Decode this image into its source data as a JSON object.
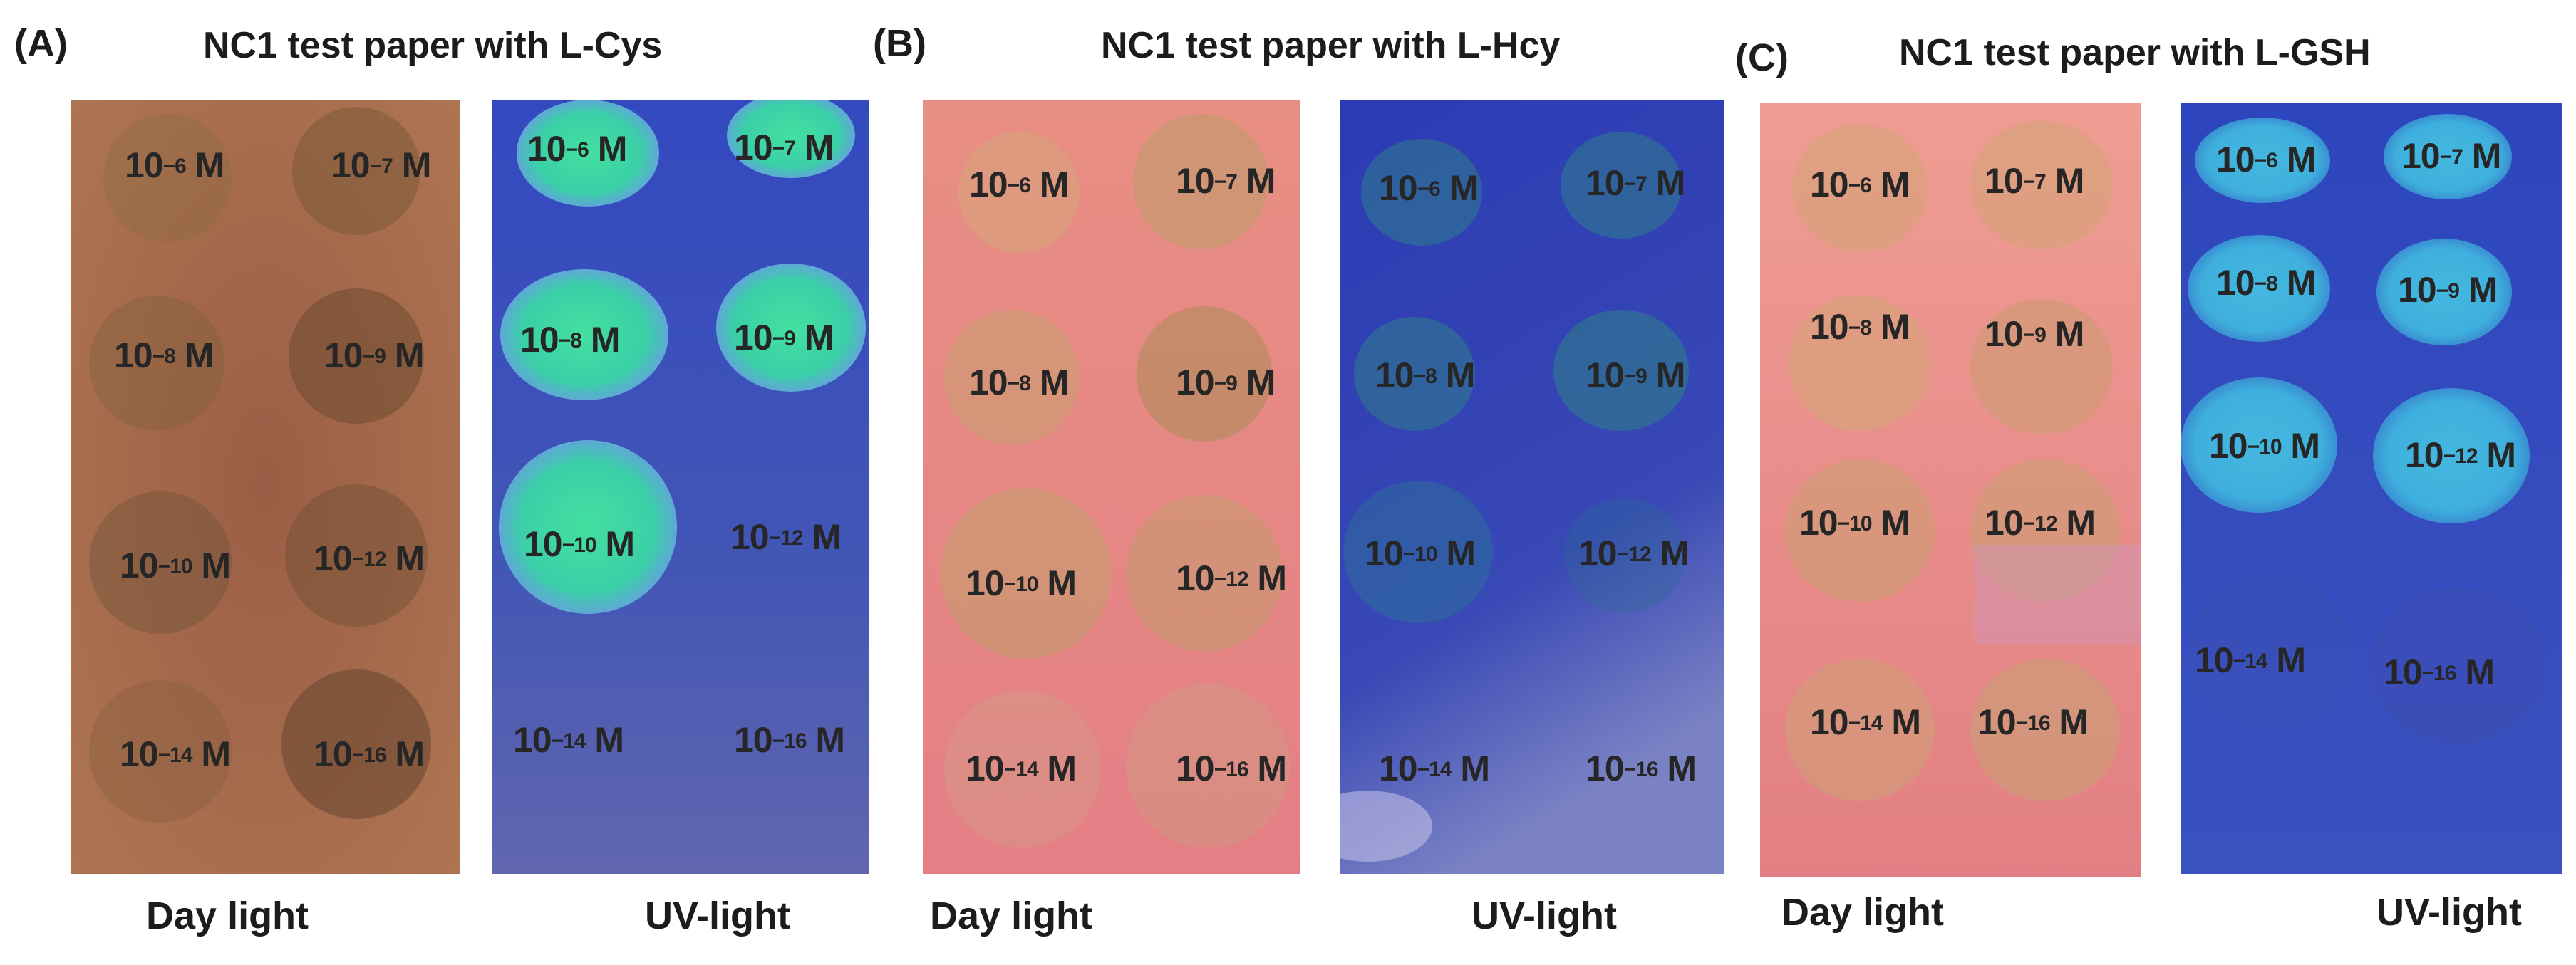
{
  "colors": {
    "daylight_a": "#a4684a",
    "daylight_pink": "#e8847f",
    "uv_blue": "#3d4fb8",
    "uv_spot": "#3ad3a3",
    "uv_spot_c": "#3bb6df"
  },
  "panels": [
    {
      "letter": "(A)",
      "title": "NC1 test paper with L-Cys",
      "day_caption": "Day light",
      "uv_caption": "UV-light",
      "day_labels": [
        {
          "exp": "−6",
          "unit": "M"
        },
        {
          "exp": "−7",
          "unit": "M"
        },
        {
          "exp": "−8",
          "unit": "M"
        },
        {
          "exp": "−9",
          "unit": "M"
        },
        {
          "exp": "−10",
          "unit": "M"
        },
        {
          "exp": "−12",
          "unit": "M"
        },
        {
          "exp": "−14",
          "unit": "M"
        },
        {
          "exp": "−16",
          "unit": "M"
        }
      ],
      "uv_labels": [
        {
          "exp": "−6",
          "unit": "M"
        },
        {
          "exp": "−7",
          "unit": "M"
        },
        {
          "exp": "−8",
          "unit": "M"
        },
        {
          "exp": "−9",
          "unit": "M"
        },
        {
          "exp": "−10",
          "unit": "M"
        },
        {
          "exp": "−12",
          "unit": "M"
        },
        {
          "exp": "−14",
          "unit": "M"
        },
        {
          "exp": "−16",
          "unit": "M"
        }
      ]
    },
    {
      "letter": "(B)",
      "title": "NC1 test paper with L-Hcy",
      "day_caption": "Day light",
      "uv_caption": "UV-light",
      "day_labels": [
        {
          "exp": "−6",
          "unit": "M"
        },
        {
          "exp": "−7",
          "unit": "M"
        },
        {
          "exp": "−8",
          "unit": "M"
        },
        {
          "exp": "−9",
          "unit": "M"
        },
        {
          "exp": "−10",
          "unit": "M"
        },
        {
          "exp": "−12",
          "unit": "M"
        },
        {
          "exp": "−14",
          "unit": "M"
        },
        {
          "exp": "−16",
          "unit": "M"
        }
      ],
      "uv_labels": [
        {
          "exp": "−6",
          "unit": "M"
        },
        {
          "exp": "−7",
          "unit": "M"
        },
        {
          "exp": "−8",
          "unit": "M"
        },
        {
          "exp": "−9",
          "unit": "M"
        },
        {
          "exp": "−10",
          "unit": "M"
        },
        {
          "exp": "−12",
          "unit": "M"
        },
        {
          "exp": "−14",
          "unit": "M"
        },
        {
          "exp": "−16",
          "unit": "M"
        }
      ]
    },
    {
      "letter": "(C)",
      "title": "NC1 test paper with L-GSH",
      "day_caption": "Day light",
      "uv_caption": "UV-light",
      "day_labels": [
        {
          "exp": "−6",
          "unit": "M"
        },
        {
          "exp": "−7",
          "unit": "M"
        },
        {
          "exp": "−8",
          "unit": "M"
        },
        {
          "exp": "−9",
          "unit": "M"
        },
        {
          "exp": "−10",
          "unit": "M"
        },
        {
          "exp": "−12",
          "unit": "M"
        },
        {
          "exp": "−14",
          "unit": "M"
        },
        {
          "exp": "−16",
          "unit": "M"
        }
      ],
      "uv_labels": [
        {
          "exp": "−6",
          "unit": "M"
        },
        {
          "exp": "−7",
          "unit": "M"
        },
        {
          "exp": "−8",
          "unit": "M"
        },
        {
          "exp": "−9",
          "unit": "M"
        },
        {
          "exp": "−10",
          "unit": "M"
        },
        {
          "exp": "−12",
          "unit": "M"
        },
        {
          "exp": "−14",
          "unit": "M"
        },
        {
          "exp": "−16",
          "unit": "M"
        }
      ]
    }
  ]
}
